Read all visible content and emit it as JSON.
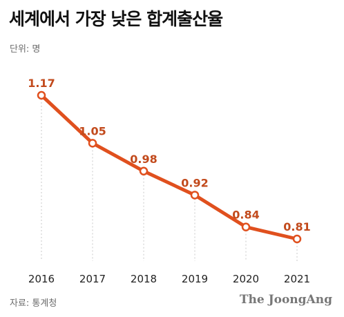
{
  "title": "세계에서 가장 낮은 합계출산율",
  "unit_label": "단위: 명",
  "source_label": "자료: 통계청",
  "brand": "The JoongAng",
  "colors": {
    "line": "#e0501e",
    "label": "#c24a1c",
    "guide": "#c8c8c8",
    "axis_text": "#222222"
  },
  "chart_data": {
    "type": "line",
    "title": "세계에서 가장 낮은 합계출산율",
    "xlabel": "",
    "ylabel": "",
    "categories": [
      "2016",
      "2017",
      "2018",
      "2019",
      "2020",
      "2021"
    ],
    "series": [
      {
        "values": [
          1.17,
          1.05,
          0.98,
          0.92,
          0.84,
          0.81
        ]
      }
    ],
    "value_labels": [
      "1.17",
      "1.05",
      "0.98",
      "0.92",
      "0.84",
      "0.81"
    ],
    "grid": false,
    "legend": "none"
  }
}
